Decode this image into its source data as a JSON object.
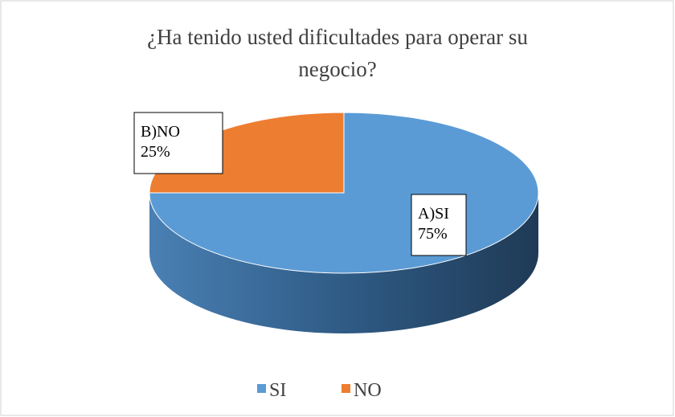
{
  "chart_data": {
    "type": "pie",
    "title": "¿Ha tenido usted dificultades para operar su negocio?",
    "categories": [
      "SI",
      "NO"
    ],
    "labels": [
      "A)SI",
      "B)NO"
    ],
    "values": [
      75,
      25
    ],
    "value_labels": [
      "75%",
      "25%"
    ],
    "colors": [
      "#5b9bd5",
      "#ed7d31"
    ],
    "legend": "bottom"
  }
}
